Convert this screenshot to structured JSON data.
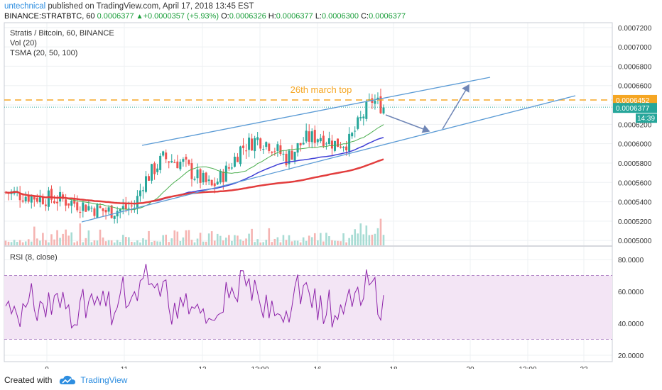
{
  "header": {
    "author": "untechnical",
    "published_text": " published on TradingView.com, April 17, 2018 13:45 EST",
    "symbol": "BINANCE:STRATBTC, 60",
    "last": "0.0006377",
    "change": "+0.0000357 (+5.93%)",
    "o_label": "O:",
    "o": "0.0006326",
    "h_label": "H:",
    "h": "0.0006377",
    "l_label": "L:",
    "l": "0.0006300",
    "c_label": "C:",
    "c": "0.0006377"
  },
  "footer": {
    "created_with": "Created with",
    "brand": "TradingView"
  },
  "chart_data": [
    {
      "type": "candlestick",
      "legend": [
        "Stratis / Bitcoin, 60, BINANCE",
        "Vol (20)",
        "TSMA (20, 50, 100)"
      ],
      "y_ticks": [
        "0.0007200",
        "0.0007000",
        "0.0006800",
        "0.0006600",
        "0.0006400",
        "0.0006200",
        "0.0006000",
        "0.0005800",
        "0.0005600",
        "0.0005400",
        "0.0005200",
        "0.0005000"
      ],
      "ylim": [
        0.000495,
        0.000725
      ],
      "x_ticks": [
        "9",
        "11",
        "13",
        "12:00",
        "16",
        "18",
        "20",
        "12:00",
        "23"
      ],
      "price_labels": {
        "resistance": "0.0006452",
        "last": "0.0006377",
        "countdown": "14:39"
      },
      "annotation": "26th march top",
      "resistance_level": 0.0006452,
      "colors": {
        "up": "#26a69a",
        "down": "#ef5350",
        "ma_fast": "#4caf50",
        "ma_mid": "#3f3fd6",
        "ma_slow": "#e23d3d",
        "channel": "#5b9bd5",
        "resistance": "#f5a623"
      }
    },
    {
      "type": "line",
      "legend": "RSI (8, close)",
      "y_ticks": [
        "80.0000",
        "60.0000",
        "40.0000",
        "20.0000"
      ],
      "ylim": [
        16,
        88
      ],
      "band": [
        30,
        70
      ],
      "color": "#8e24aa"
    }
  ]
}
